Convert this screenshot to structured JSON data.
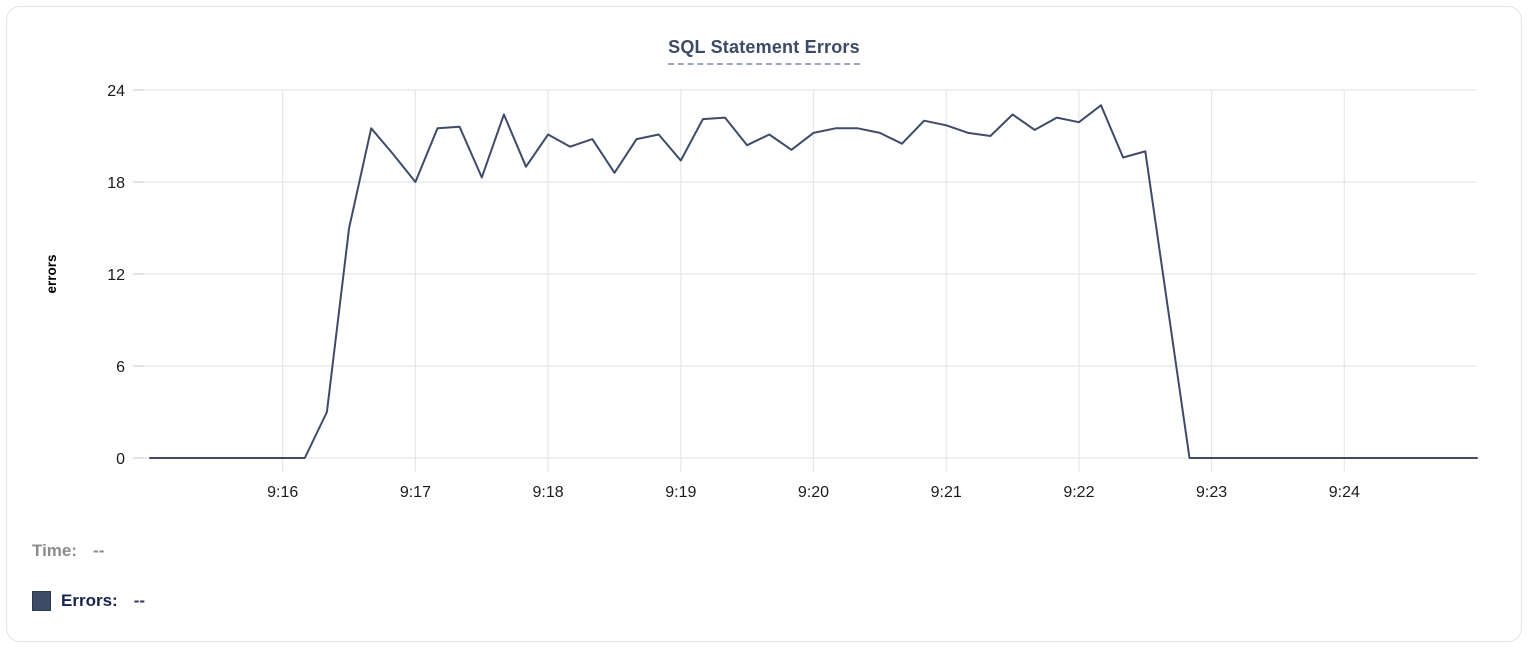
{
  "chart_data": {
    "type": "line",
    "title": "SQL Statement Errors",
    "xlabel": "",
    "ylabel": "errors",
    "ylim": [
      0,
      24
    ],
    "y_ticks": [
      0,
      6,
      12,
      18,
      24
    ],
    "x_ticks": [
      "9:16",
      "9:17",
      "9:18",
      "9:19",
      "9:20",
      "9:21",
      "9:22",
      "9:23",
      "9:24"
    ],
    "x_start_time": "9:15:00",
    "x_interval_seconds": 10,
    "grid": true,
    "line_color": "#3e4b69",
    "grid_color": "#e7e7e7",
    "tick_text_color": "#1b1b1b",
    "series": [
      {
        "name": "Errors",
        "values": [
          0,
          0,
          0,
          0,
          0,
          0,
          0,
          0,
          3,
          15,
          21.5,
          19.8,
          18,
          21.5,
          21.6,
          18.3,
          22.4,
          19,
          21.1,
          20.3,
          20.8,
          18.6,
          20.8,
          21.1,
          19.4,
          22.1,
          22.2,
          20.4,
          21.1,
          20.1,
          21.2,
          21.5,
          21.5,
          21.2,
          20.5,
          22,
          21.7,
          21.2,
          21,
          22.4,
          21.4,
          22.2,
          21.9,
          23,
          19.6,
          20,
          10,
          0,
          0,
          0,
          0,
          0,
          0,
          0,
          0,
          0,
          0,
          0,
          0,
          0,
          0
        ]
      }
    ]
  },
  "hover_readout": {
    "time_label": "Time:",
    "time_value": "--",
    "errors_label": "Errors:",
    "errors_value": "--",
    "swatch_color": "#3e4a66"
  }
}
